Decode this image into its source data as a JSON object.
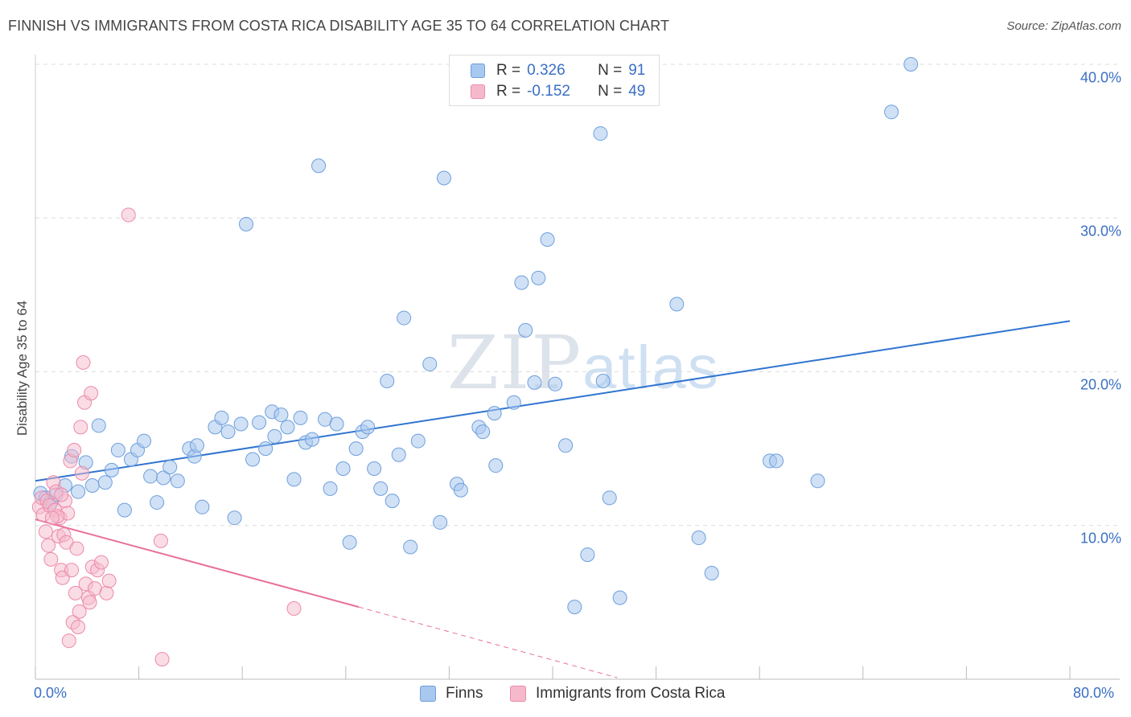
{
  "header": {
    "title": "FINNISH VS IMMIGRANTS FROM COSTA RICA DISABILITY AGE 35 TO 64 CORRELATION CHART",
    "source": "Source: ZipAtlas.com"
  },
  "watermark": {
    "zip": "ZIP",
    "atlas": "atlas"
  },
  "colors": {
    "finns_fill": "#a9c8ef",
    "finns_stroke": "#6d9fdc",
    "finns_line": "#2f74d0",
    "cr_fill": "#f6b9cc",
    "cr_stroke": "#ec8aaa",
    "cr_line": "#e8709a",
    "tick_text": "#3a6fc4",
    "grid": "#dcdcdc"
  },
  "legend": {
    "r_label": "R =",
    "n_label": "N =",
    "series": [
      {
        "name": "Finns",
        "r": "0.326",
        "n": "91"
      },
      {
        "name": "Immigrants from Costa Rica",
        "r": "-0.152",
        "n": "49"
      }
    ]
  },
  "chart_data": {
    "type": "scatter",
    "title": "FINNISH VS IMMIGRANTS FROM COSTA RICA DISABILITY AGE 35 TO 64 CORRELATION CHART",
    "xlabel": "",
    "ylabel": "Disability Age 35 to 64",
    "xlim": [
      0,
      80
    ],
    "ylim": [
      0,
      40
    ],
    "x_tick_labels": [
      "0.0%",
      "80.0%"
    ],
    "y_ticks": [
      10,
      20,
      30,
      40
    ],
    "y_tick_labels": [
      "10.0%",
      "20.0%",
      "30.0%",
      "40.0%"
    ],
    "grid": true,
    "legend_position": "top-center",
    "series": [
      {
        "name": "Finns",
        "trend": {
          "x": [
            0,
            80
          ],
          "y": [
            12.9,
            23.3
          ]
        },
        "points": [
          [
            0.4,
            12.1
          ],
          [
            0.8,
            11.8
          ],
          [
            1.2,
            11.5
          ],
          [
            1.6,
            12.0
          ],
          [
            2.3,
            12.6
          ],
          [
            2.8,
            14.5
          ],
          [
            3.3,
            12.2
          ],
          [
            3.9,
            14.1
          ],
          [
            4.4,
            12.6
          ],
          [
            4.9,
            16.5
          ],
          [
            5.4,
            12.8
          ],
          [
            5.9,
            13.6
          ],
          [
            6.4,
            14.9
          ],
          [
            6.9,
            11.0
          ],
          [
            7.4,
            14.3
          ],
          [
            7.9,
            14.9
          ],
          [
            8.4,
            15.5
          ],
          [
            8.9,
            13.2
          ],
          [
            9.4,
            11.5
          ],
          [
            9.9,
            13.1
          ],
          [
            10.4,
            13.8
          ],
          [
            11.0,
            12.9
          ],
          [
            11.9,
            15.0
          ],
          [
            12.3,
            14.5
          ],
          [
            12.5,
            15.2
          ],
          [
            12.9,
            11.2
          ],
          [
            13.9,
            16.4
          ],
          [
            14.4,
            17.0
          ],
          [
            14.9,
            16.1
          ],
          [
            15.4,
            10.5
          ],
          [
            15.9,
            16.6
          ],
          [
            16.3,
            29.6
          ],
          [
            16.8,
            14.3
          ],
          [
            17.3,
            16.7
          ],
          [
            17.8,
            15.0
          ],
          [
            18.3,
            17.4
          ],
          [
            18.5,
            15.8
          ],
          [
            19.0,
            17.2
          ],
          [
            19.5,
            16.4
          ],
          [
            20.0,
            13.0
          ],
          [
            20.5,
            17.0
          ],
          [
            20.9,
            15.4
          ],
          [
            21.4,
            15.6
          ],
          [
            21.9,
            33.4
          ],
          [
            22.4,
            16.9
          ],
          [
            22.8,
            12.4
          ],
          [
            23.3,
            16.6
          ],
          [
            23.8,
            13.7
          ],
          [
            24.3,
            8.9
          ],
          [
            24.8,
            15.0
          ],
          [
            25.3,
            16.1
          ],
          [
            25.7,
            16.4
          ],
          [
            26.2,
            13.7
          ],
          [
            26.7,
            12.4
          ],
          [
            27.2,
            19.4
          ],
          [
            27.6,
            11.6
          ],
          [
            28.1,
            14.6
          ],
          [
            28.5,
            23.5
          ],
          [
            29.0,
            8.6
          ],
          [
            29.6,
            15.5
          ],
          [
            30.5,
            20.5
          ],
          [
            31.3,
            10.2
          ],
          [
            31.6,
            32.6
          ],
          [
            32.6,
            12.7
          ],
          [
            32.9,
            12.3
          ],
          [
            34.3,
            16.4
          ],
          [
            34.6,
            16.1
          ],
          [
            35.6,
            13.9
          ],
          [
            35.5,
            17.3
          ],
          [
            37.0,
            18.0
          ],
          [
            37.6,
            25.8
          ],
          [
            37.9,
            22.7
          ],
          [
            38.6,
            19.3
          ],
          [
            38.9,
            26.1
          ],
          [
            39.6,
            28.6
          ],
          [
            40.2,
            19.2
          ],
          [
            41.0,
            15.2
          ],
          [
            41.7,
            4.7
          ],
          [
            42.7,
            8.1
          ],
          [
            43.7,
            35.5
          ],
          [
            43.9,
            19.4
          ],
          [
            44.4,
            11.8
          ],
          [
            45.2,
            5.3
          ],
          [
            49.6,
            24.4
          ],
          [
            51.3,
            9.2
          ],
          [
            52.3,
            6.9
          ],
          [
            56.8,
            14.2
          ],
          [
            57.3,
            14.2
          ],
          [
            60.5,
            12.9
          ],
          [
            66.2,
            36.9
          ],
          [
            67.7,
            40.0
          ]
        ]
      },
      {
        "name": "Immigrants from Costa Rica",
        "trend": {
          "x": [
            0,
            25
          ],
          "y": [
            10.4,
            4.7
          ]
        },
        "trend_dashed": {
          "x": [
            25,
            45
          ],
          "y": [
            4.7,
            0.1
          ]
        },
        "points": [
          [
            0.3,
            11.2
          ],
          [
            0.5,
            11.8
          ],
          [
            0.6,
            10.7
          ],
          [
            0.8,
            9.6
          ],
          [
            0.9,
            11.6
          ],
          [
            1.0,
            8.7
          ],
          [
            1.1,
            11.3
          ],
          [
            1.2,
            7.8
          ],
          [
            1.4,
            12.8
          ],
          [
            1.5,
            11.0
          ],
          [
            1.6,
            12.2
          ],
          [
            1.8,
            9.3
          ],
          [
            1.9,
            10.5
          ],
          [
            2.0,
            7.1
          ],
          [
            2.1,
            6.6
          ],
          [
            2.2,
            9.4
          ],
          [
            2.3,
            11.6
          ],
          [
            2.4,
            8.9
          ],
          [
            2.5,
            10.8
          ],
          [
            2.6,
            2.5
          ],
          [
            2.7,
            14.2
          ],
          [
            2.8,
            7.1
          ],
          [
            2.9,
            3.7
          ],
          [
            3.0,
            14.9
          ],
          [
            3.1,
            5.6
          ],
          [
            3.2,
            8.5
          ],
          [
            3.3,
            3.4
          ],
          [
            3.4,
            4.4
          ],
          [
            3.5,
            16.4
          ],
          [
            3.6,
            13.4
          ],
          [
            3.7,
            20.6
          ],
          [
            3.8,
            18.0
          ],
          [
            3.9,
            6.2
          ],
          [
            4.1,
            5.3
          ],
          [
            4.2,
            5.0
          ],
          [
            4.3,
            18.6
          ],
          [
            4.4,
            7.3
          ],
          [
            4.6,
            5.9
          ],
          [
            4.8,
            7.1
          ],
          [
            5.1,
            7.6
          ],
          [
            5.5,
            5.6
          ],
          [
            5.7,
            6.4
          ],
          [
            7.2,
            30.2
          ],
          [
            9.7,
            9.0
          ],
          [
            9.8,
            1.3
          ],
          [
            20.0,
            4.6
          ],
          [
            1.7,
            10.6
          ],
          [
            2.0,
            12.0
          ],
          [
            1.3,
            10.5
          ]
        ]
      }
    ]
  }
}
